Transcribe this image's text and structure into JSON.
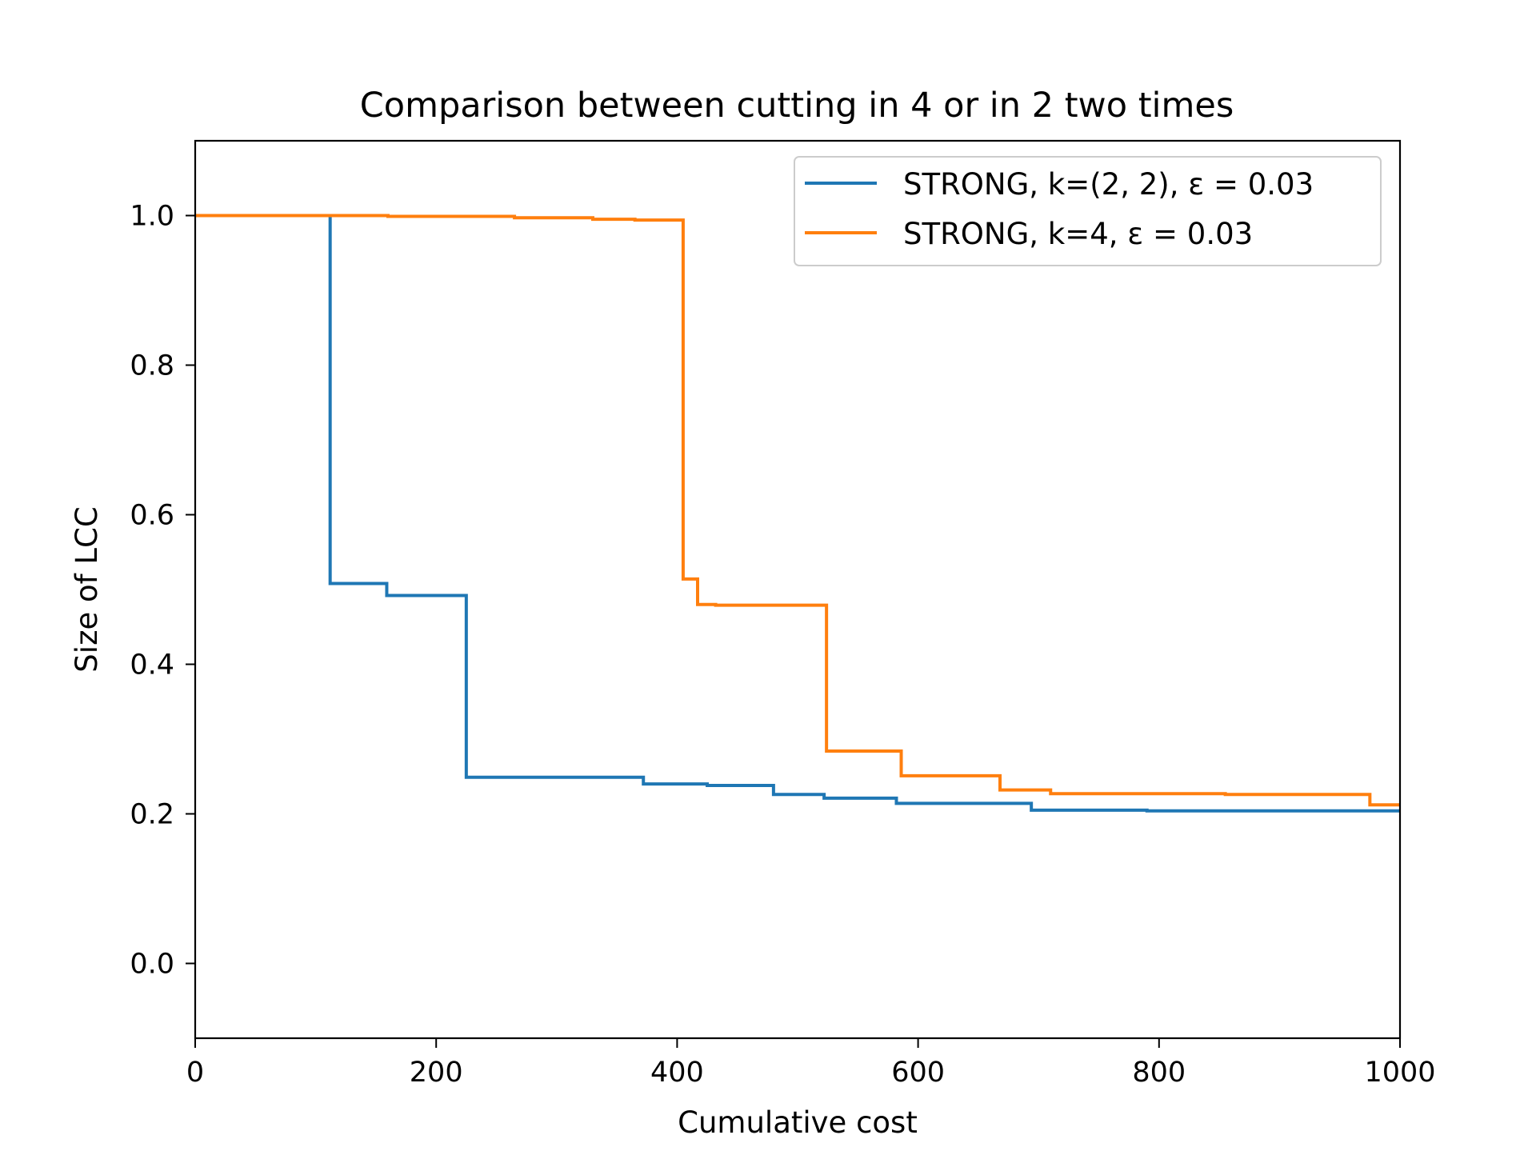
{
  "chart_data": {
    "type": "line",
    "title": "Comparison between cutting in 4 or in 2 two times",
    "xlabel": "Cumulative cost",
    "ylabel": "Size of LCC",
    "xlim": [
      0,
      1000
    ],
    "ylim": [
      -0.1,
      1.1
    ],
    "x_ticks": [
      0,
      200,
      400,
      600,
      800,
      1000
    ],
    "x_tick_labels": [
      "0",
      "200",
      "400",
      "600",
      "800",
      "1000"
    ],
    "y_ticks": [
      0.0,
      0.2,
      0.4,
      0.6,
      0.8,
      1.0
    ],
    "y_tick_labels": [
      "0.0",
      "0.2",
      "0.4",
      "0.6",
      "0.8",
      "1.0"
    ],
    "grid": false,
    "legend_position": "top-right",
    "step": "post",
    "series": [
      {
        "name": "STRONG, k=(2, 2), ε = 0.03",
        "color": "#1f77b4",
        "x": [
          0,
          112,
          159,
          225,
          360,
          372,
          425,
          480,
          522,
          582,
          694,
          790,
          1000
        ],
        "y": [
          1.0,
          0.508,
          0.492,
          0.249,
          0.249,
          0.24,
          0.238,
          0.226,
          0.221,
          0.214,
          0.205,
          0.204,
          0.204
        ]
      },
      {
        "name": "STRONG, k=4, ε = 0.03",
        "color": "#ff7f0e",
        "x": [
          0,
          160,
          265,
          330,
          365,
          405,
          417,
          432,
          524,
          586,
          668,
          710,
          855,
          975,
          1000
        ],
        "y": [
          1.0,
          0.999,
          0.997,
          0.995,
          0.994,
          0.514,
          0.48,
          0.479,
          0.284,
          0.251,
          0.232,
          0.227,
          0.226,
          0.212,
          0.212
        ]
      }
    ]
  }
}
